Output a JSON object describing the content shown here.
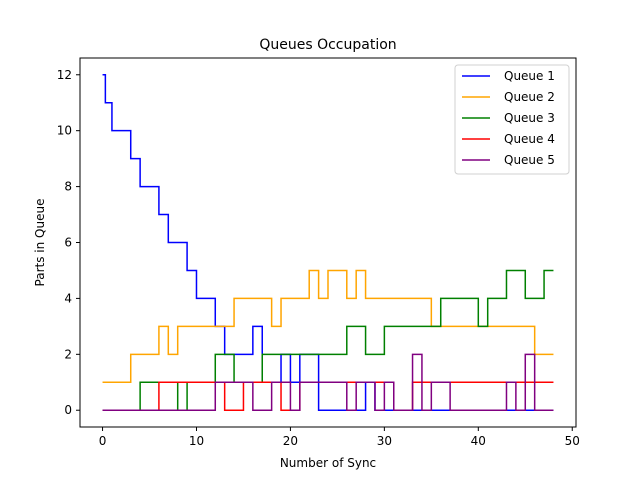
{
  "chart_data": {
    "type": "line",
    "step": "post",
    "title": "Queues Occupation",
    "xlabel": "Number of Sync",
    "ylabel": "Parts in Queue",
    "xlim": [
      -2.4,
      50.4
    ],
    "ylim": [
      -0.6,
      12.6
    ],
    "xticks": [
      0,
      10,
      20,
      30,
      40,
      50
    ],
    "yticks": [
      0,
      2,
      4,
      6,
      8,
      10,
      12
    ],
    "grid": false,
    "legend_position": "top-right",
    "series": [
      {
        "name": "Queue 1",
        "color": "#0000ff",
        "x": [
          0,
          0.3,
          1,
          3,
          4,
          6,
          7,
          9,
          10,
          12,
          13,
          14,
          16,
          17,
          19,
          20,
          21,
          23,
          25,
          28,
          29,
          39,
          48
        ],
        "y": [
          12,
          11,
          10,
          9,
          8,
          7,
          6,
          5,
          4,
          3,
          2,
          2,
          3,
          1,
          2,
          1,
          2,
          0,
          0,
          1,
          0,
          0,
          0
        ]
      },
      {
        "name": "Queue 2",
        "color": "#ffa500",
        "x": [
          0,
          3,
          6,
          7,
          8,
          14,
          18,
          19,
          22,
          23,
          24,
          26,
          27,
          28,
          35,
          46,
          48
        ],
        "y": [
          1,
          2,
          3,
          2,
          3,
          4,
          3,
          4,
          5,
          4,
          5,
          4,
          5,
          4,
          3,
          2,
          2
        ]
      },
      {
        "name": "Queue 3",
        "color": "#008000",
        "x": [
          0,
          4,
          8,
          9,
          12,
          14,
          17,
          26,
          28,
          30,
          36,
          40,
          41,
          43,
          45,
          47,
          48
        ],
        "y": [
          0,
          1,
          0,
          1,
          2,
          1,
          2,
          3,
          2,
          3,
          4,
          3,
          4,
          5,
          4,
          5,
          5
        ]
      },
      {
        "name": "Queue 4",
        "color": "#ff0000",
        "x": [
          0,
          6,
          13,
          15,
          19,
          21,
          31,
          33,
          48
        ],
        "y": [
          0,
          1,
          0,
          1,
          0,
          1,
          0,
          1,
          1
        ]
      },
      {
        "name": "Queue 5",
        "color": "#800080",
        "x": [
          0,
          12,
          16,
          18,
          20,
          21,
          26,
          27,
          29,
          30,
          31,
          33,
          34,
          35,
          37,
          43,
          44,
          45,
          46,
          48
        ],
        "y": [
          0,
          1,
          0,
          1,
          0,
          1,
          0,
          1,
          0,
          1,
          0,
          2,
          0,
          1,
          0,
          1,
          0,
          2,
          0,
          0
        ]
      }
    ]
  }
}
